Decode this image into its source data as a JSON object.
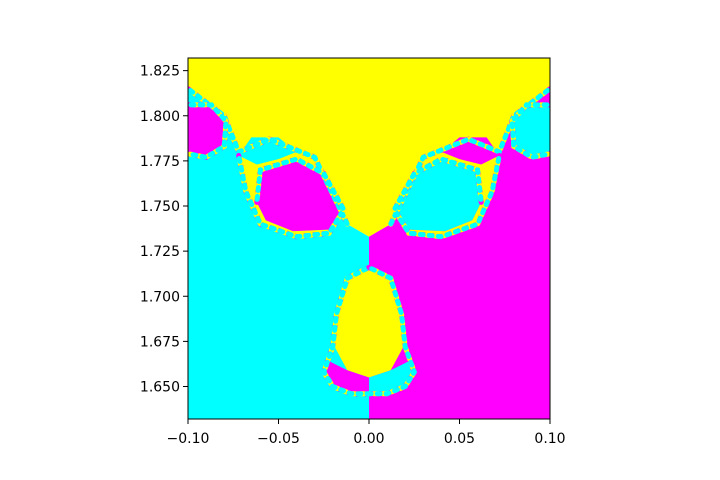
{
  "chart_data": {
    "type": "heatmap",
    "title": "",
    "xlabel": "",
    "ylabel": "",
    "xlim": [
      -0.1,
      0.1
    ],
    "ylim": [
      1.632,
      1.832
    ],
    "x_ticks": [
      {
        "value": -0.1,
        "label": "−0.10"
      },
      {
        "value": -0.05,
        "label": "−0.05"
      },
      {
        "value": 0.0,
        "label": "0.00"
      },
      {
        "value": 0.05,
        "label": "0.05"
      },
      {
        "value": 0.1,
        "label": "0.10"
      }
    ],
    "y_ticks": [
      {
        "value": 1.65,
        "label": "1.650"
      },
      {
        "value": 1.675,
        "label": "1.675"
      },
      {
        "value": 1.7,
        "label": "1.700"
      },
      {
        "value": 1.725,
        "label": "1.725"
      },
      {
        "value": 1.75,
        "label": "1.750"
      },
      {
        "value": 1.775,
        "label": "1.775"
      },
      {
        "value": 1.8,
        "label": "1.800"
      },
      {
        "value": 1.825,
        "label": "1.825"
      }
    ],
    "colors": {
      "yellow": "#ffff00",
      "cyan": "#00ffff",
      "magenta": "#ff00ff"
    },
    "regions": [
      {
        "name": "yellow",
        "points": [
          [
            -0.1,
            1.832
          ],
          [
            0.1,
            1.832
          ],
          [
            0.1,
            1.815
          ],
          [
            0.08,
            1.8
          ],
          [
            0.072,
            1.78
          ],
          [
            0.055,
            1.787
          ],
          [
            0.03,
            1.777
          ],
          [
            0.012,
            1.74
          ],
          [
            0.0,
            1.733
          ],
          [
            -0.012,
            1.74
          ],
          [
            -0.03,
            1.777
          ],
          [
            -0.055,
            1.787
          ],
          [
            -0.072,
            1.78
          ],
          [
            -0.08,
            1.8
          ],
          [
            -0.1,
            1.815
          ]
        ]
      },
      {
        "name": "cyan",
        "points": [
          [
            -0.1,
            1.815
          ],
          [
            -0.08,
            1.8
          ],
          [
            -0.072,
            1.78
          ],
          [
            -0.055,
            1.787
          ],
          [
            -0.03,
            1.777
          ],
          [
            -0.012,
            1.74
          ],
          [
            0.0,
            1.733
          ],
          [
            0.0,
            1.632
          ],
          [
            -0.1,
            1.632
          ]
        ]
      },
      {
        "name": "magenta",
        "points": [
          [
            0.1,
            1.815
          ],
          [
            0.08,
            1.8
          ],
          [
            0.072,
            1.78
          ],
          [
            0.055,
            1.787
          ],
          [
            0.03,
            1.777
          ],
          [
            0.012,
            1.74
          ],
          [
            0.0,
            1.733
          ],
          [
            0.0,
            1.632
          ],
          [
            0.1,
            1.632
          ]
        ]
      },
      {
        "name": "magenta",
        "points": [
          [
            -0.062,
            1.752
          ],
          [
            -0.06,
            1.77
          ],
          [
            -0.04,
            1.776
          ],
          [
            -0.025,
            1.768
          ],
          [
            -0.014,
            1.748
          ],
          [
            -0.02,
            1.737
          ],
          [
            -0.042,
            1.736
          ],
          [
            -0.057,
            1.742
          ]
        ]
      },
      {
        "name": "cyan",
        "points": [
          [
            0.062,
            1.752
          ],
          [
            0.06,
            1.77
          ],
          [
            0.04,
            1.776
          ],
          [
            0.025,
            1.768
          ],
          [
            0.014,
            1.748
          ],
          [
            0.02,
            1.737
          ],
          [
            0.042,
            1.736
          ],
          [
            0.057,
            1.742
          ]
        ]
      },
      {
        "name": "yellow",
        "points": [
          [
            -0.072,
            1.778
          ],
          [
            -0.068,
            1.758
          ],
          [
            -0.06,
            1.74
          ],
          [
            -0.04,
            1.733
          ],
          [
            -0.022,
            1.735
          ],
          [
            -0.02,
            1.737
          ],
          [
            -0.042,
            1.736
          ],
          [
            -0.057,
            1.742
          ],
          [
            -0.062,
            1.752
          ],
          [
            -0.06,
            1.77
          ],
          [
            -0.04,
            1.776
          ],
          [
            -0.025,
            1.768
          ],
          [
            -0.03,
            1.777
          ],
          [
            -0.05,
            1.782
          ]
        ]
      },
      {
        "name": "yellow",
        "points": [
          [
            0.072,
            1.778
          ],
          [
            0.068,
            1.758
          ],
          [
            0.06,
            1.74
          ],
          [
            0.04,
            1.733
          ],
          [
            0.022,
            1.735
          ],
          [
            0.02,
            1.737
          ],
          [
            0.042,
            1.736
          ],
          [
            0.057,
            1.742
          ],
          [
            0.062,
            1.752
          ],
          [
            0.06,
            1.77
          ],
          [
            0.04,
            1.776
          ],
          [
            0.025,
            1.768
          ],
          [
            0.03,
            1.777
          ],
          [
            0.05,
            1.782
          ]
        ]
      },
      {
        "name": "cyan",
        "points": [
          [
            -0.072,
            1.778
          ],
          [
            -0.065,
            1.788
          ],
          [
            -0.05,
            1.788
          ],
          [
            -0.04,
            1.78
          ],
          [
            -0.05,
            1.776
          ],
          [
            -0.062,
            1.773
          ]
        ]
      },
      {
        "name": "magenta",
        "points": [
          [
            0.072,
            1.778
          ],
          [
            0.065,
            1.788
          ],
          [
            0.05,
            1.788
          ],
          [
            0.04,
            1.78
          ],
          [
            0.05,
            1.776
          ],
          [
            0.062,
            1.773
          ]
        ]
      },
      {
        "name": "magenta",
        "points": [
          [
            -0.1,
            1.806
          ],
          [
            -0.087,
            1.806
          ],
          [
            -0.079,
            1.797
          ],
          [
            -0.08,
            1.783
          ],
          [
            -0.09,
            1.777
          ],
          [
            -0.1,
            1.779
          ]
        ]
      },
      {
        "name": "cyan",
        "points": [
          [
            0.1,
            1.806
          ],
          [
            0.087,
            1.806
          ],
          [
            0.079,
            1.797
          ],
          [
            0.08,
            1.783
          ],
          [
            0.09,
            1.777
          ],
          [
            0.1,
            1.779
          ]
        ]
      },
      {
        "name": "yellow",
        "points": [
          [
            0.0,
            1.716
          ],
          [
            -0.012,
            1.71
          ],
          [
            -0.018,
            1.69
          ],
          [
            -0.019,
            1.672
          ],
          [
            -0.012,
            1.659
          ],
          [
            0.0,
            1.655
          ],
          [
            0.012,
            1.659
          ],
          [
            0.019,
            1.672
          ],
          [
            0.018,
            1.69
          ],
          [
            0.012,
            1.71
          ]
        ]
      },
      {
        "name": "magenta",
        "points": [
          [
            0.0,
            1.655
          ],
          [
            -0.012,
            1.659
          ],
          [
            -0.022,
            1.664
          ],
          [
            -0.025,
            1.658
          ],
          [
            -0.02,
            1.65
          ],
          [
            -0.01,
            1.646
          ],
          [
            0.0,
            1.646
          ]
        ]
      },
      {
        "name": "cyan",
        "points": [
          [
            0.0,
            1.655
          ],
          [
            0.012,
            1.659
          ],
          [
            0.022,
            1.664
          ],
          [
            0.025,
            1.658
          ],
          [
            0.02,
            1.65
          ],
          [
            0.01,
            1.646
          ],
          [
            0.0,
            1.646
          ]
        ]
      },
      {
        "name": "cyan",
        "points": [
          [
            -0.019,
            1.672
          ],
          [
            -0.022,
            1.664
          ],
          [
            -0.026,
            1.67
          ],
          [
            -0.024,
            1.68
          ],
          [
            -0.02,
            1.69
          ]
        ]
      },
      {
        "name": "magenta",
        "points": [
          [
            0.019,
            1.672
          ],
          [
            0.022,
            1.664
          ],
          [
            0.026,
            1.67
          ],
          [
            0.024,
            1.68
          ],
          [
            0.02,
            1.69
          ]
        ]
      }
    ],
    "boundary_curves": [
      {
        "points": [
          [
            -0.1,
            1.815
          ],
          [
            -0.08,
            1.8
          ],
          [
            -0.072,
            1.78
          ],
          [
            -0.055,
            1.787
          ],
          [
            -0.03,
            1.777
          ],
          [
            -0.012,
            1.74
          ]
        ]
      },
      {
        "points": [
          [
            0.1,
            1.815
          ],
          [
            0.08,
            1.8
          ],
          [
            0.072,
            1.78
          ],
          [
            0.055,
            1.787
          ],
          [
            0.03,
            1.777
          ],
          [
            0.012,
            1.74
          ]
        ]
      },
      {
        "points": [
          [
            -0.072,
            1.778
          ],
          [
            -0.068,
            1.758
          ],
          [
            -0.06,
            1.74
          ],
          [
            -0.04,
            1.733
          ],
          [
            -0.022,
            1.735
          ],
          [
            -0.014,
            1.748
          ]
        ]
      },
      {
        "points": [
          [
            0.072,
            1.778
          ],
          [
            0.068,
            1.758
          ],
          [
            0.06,
            1.74
          ],
          [
            0.04,
            1.733
          ],
          [
            0.022,
            1.735
          ],
          [
            0.014,
            1.748
          ]
        ]
      },
      {
        "points": [
          [
            -0.062,
            1.752
          ],
          [
            -0.06,
            1.77
          ],
          [
            -0.04,
            1.776
          ],
          [
            -0.025,
            1.768
          ],
          [
            -0.014,
            1.748
          ]
        ]
      },
      {
        "points": [
          [
            0.062,
            1.752
          ],
          [
            0.06,
            1.77
          ],
          [
            0.04,
            1.776
          ],
          [
            0.025,
            1.768
          ],
          [
            0.014,
            1.748
          ]
        ]
      },
      {
        "points": [
          [
            -0.1,
            1.806
          ],
          [
            -0.087,
            1.806
          ],
          [
            -0.079,
            1.797
          ],
          [
            -0.08,
            1.783
          ],
          [
            -0.09,
            1.777
          ],
          [
            -0.1,
            1.779
          ]
        ]
      },
      {
        "points": [
          [
            0.1,
            1.806
          ],
          [
            0.087,
            1.806
          ],
          [
            0.079,
            1.797
          ],
          [
            0.08,
            1.783
          ],
          [
            0.09,
            1.777
          ],
          [
            0.1,
            1.779
          ]
        ]
      },
      {
        "points": [
          [
            0.0,
            1.716
          ],
          [
            -0.012,
            1.71
          ],
          [
            -0.018,
            1.69
          ],
          [
            -0.02,
            1.672
          ],
          [
            -0.025,
            1.658
          ],
          [
            -0.02,
            1.65
          ],
          [
            -0.01,
            1.646
          ],
          [
            0.0,
            1.646
          ]
        ]
      },
      {
        "points": [
          [
            0.0,
            1.716
          ],
          [
            0.012,
            1.71
          ],
          [
            0.018,
            1.69
          ],
          [
            0.02,
            1.672
          ],
          [
            0.025,
            1.658
          ],
          [
            0.02,
            1.65
          ],
          [
            0.01,
            1.646
          ],
          [
            0.0,
            1.646
          ]
        ]
      }
    ]
  }
}
